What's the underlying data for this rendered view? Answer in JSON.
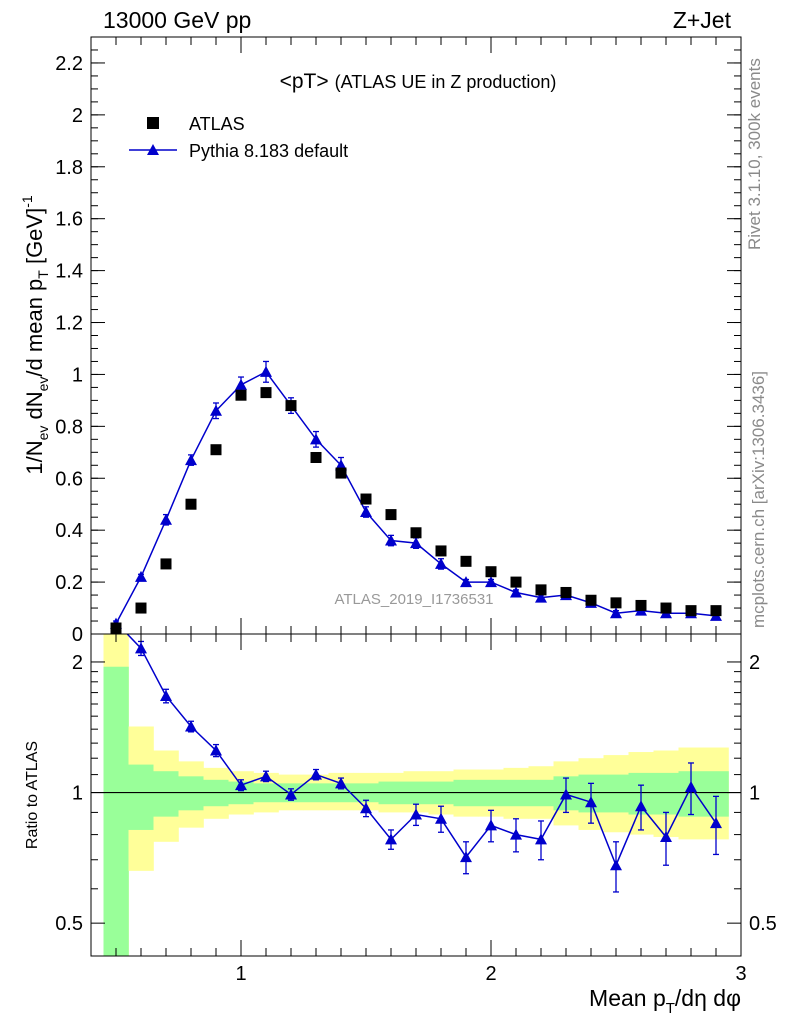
{
  "header": {
    "left": "13000 GeV pp",
    "right": "Z+Jet"
  },
  "side_text": {
    "rivet": "Rivet 3.1.10,  300k events",
    "mcplots": "mcplots.cern.ch [arXiv:1306.3436]"
  },
  "colors": {
    "data_marker": "#000000",
    "mc_line": "#0000cc",
    "band_inner": "#99ff99",
    "band_outer": "#ffff99",
    "watermark": "#999999"
  },
  "chart_data": [
    {
      "type": "scatter",
      "panel": "main",
      "title": "<pT>",
      "subtitle": "(ATLAS UE in Z production)",
      "analysis_label": "ATLAS_2019_I1736531",
      "xlabel": "Mean p_T/dη dφ",
      "ylabel": "1/N_ev dN_ev/d mean p_T [GeV]^-1",
      "xlim": [
        0.4,
        3.0
      ],
      "ylim": [
        0,
        2.3
      ],
      "yticks": [
        0,
        0.2,
        0.4,
        0.6,
        0.8,
        1,
        1.2,
        1.4,
        1.6,
        1.8,
        2,
        2.2
      ],
      "ytick_labels": [
        "0",
        "0.2",
        "0.4",
        "0.6",
        "0.8",
        "1",
        "1.2",
        "1.4",
        "1.6",
        "1.8",
        "2",
        "2.2"
      ],
      "legend": {
        "position": "top-left",
        "entries": [
          "ATLAS",
          "Pythia 8.183 default"
        ]
      },
      "series": [
        {
          "name": "ATLAS",
          "marker": "square",
          "x": [
            0.5,
            0.6,
            0.7,
            0.8,
            0.9,
            1.0,
            1.1,
            1.2,
            1.3,
            1.4,
            1.5,
            1.6,
            1.7,
            1.8,
            1.9,
            2.0,
            2.1,
            2.2,
            2.3,
            2.4,
            2.5,
            2.6,
            2.7,
            2.8,
            2.9
          ],
          "y": [
            0.02,
            0.1,
            0.27,
            0.5,
            0.71,
            0.92,
            0.93,
            0.88,
            0.68,
            0.62,
            0.52,
            0.46,
            0.39,
            0.32,
            0.28,
            0.24,
            0.2,
            0.17,
            0.16,
            0.13,
            0.12,
            0.11,
            0.1,
            0.09,
            0.09
          ]
        },
        {
          "name": "Pythia 8.183 default",
          "marker": "triangle",
          "x": [
            0.5,
            0.6,
            0.7,
            0.8,
            0.9,
            1.0,
            1.1,
            1.2,
            1.3,
            1.4,
            1.5,
            1.6,
            1.7,
            1.8,
            1.9,
            2.0,
            2.1,
            2.2,
            2.3,
            2.4,
            2.5,
            2.6,
            2.7,
            2.8,
            2.9
          ],
          "y": [
            0.04,
            0.22,
            0.44,
            0.67,
            0.86,
            0.96,
            1.01,
            0.88,
            0.75,
            0.65,
            0.47,
            0.36,
            0.35,
            0.27,
            0.2,
            0.2,
            0.16,
            0.14,
            0.15,
            0.12,
            0.08,
            0.09,
            0.08,
            0.08,
            0.07
          ],
          "yerr": [
            0.01,
            0.01,
            0.02,
            0.02,
            0.03,
            0.03,
            0.04,
            0.03,
            0.03,
            0.03,
            0.02,
            0.02,
            0.02,
            0.02,
            0.01,
            0.01,
            0.01,
            0.01,
            0.01,
            0.01,
            0.01,
            0.01,
            0.01,
            0.01,
            0.01
          ]
        }
      ]
    },
    {
      "type": "scatter",
      "panel": "ratio",
      "ylabel": "Ratio to ATLAS",
      "xlabel": "Mean p_T/dη dφ",
      "xlim": [
        0.4,
        3.0
      ],
      "ylim": [
        0.42,
        2.32
      ],
      "log_y": true,
      "xticks": [
        1,
        2,
        3
      ],
      "xtick_labels": [
        "1",
        "2",
        "3"
      ],
      "yticks": [
        0.5,
        1,
        2
      ],
      "ytick_labels": [
        "0.5",
        "1",
        "2"
      ],
      "reference_line": 1,
      "bands": {
        "x_edges": [
          0.45,
          0.55,
          0.65,
          0.75,
          0.85,
          0.95,
          1.05,
          1.15,
          1.25,
          1.35,
          1.45,
          1.55,
          1.65,
          1.75,
          1.85,
          1.95,
          2.05,
          2.15,
          2.25,
          2.35,
          2.45,
          2.55,
          2.65,
          2.75,
          2.85,
          2.95
        ],
        "inner_lo": [
          0.3,
          0.82,
          0.88,
          0.91,
          0.93,
          0.94,
          0.95,
          0.95,
          0.95,
          0.95,
          0.95,
          0.94,
          0.94,
          0.94,
          0.93,
          0.93,
          0.93,
          0.93,
          0.91,
          0.9,
          0.9,
          0.89,
          0.89,
          0.88,
          0.88
        ],
        "inner_hi": [
          1.95,
          1.16,
          1.12,
          1.09,
          1.07,
          1.06,
          1.05,
          1.05,
          1.05,
          1.05,
          1.05,
          1.06,
          1.06,
          1.06,
          1.07,
          1.07,
          1.07,
          1.07,
          1.09,
          1.1,
          1.1,
          1.11,
          1.11,
          1.12,
          1.12
        ],
        "outer_lo": [
          0.3,
          0.66,
          0.77,
          0.83,
          0.87,
          0.89,
          0.9,
          0.91,
          0.91,
          0.91,
          0.91,
          0.9,
          0.9,
          0.89,
          0.88,
          0.88,
          0.87,
          0.87,
          0.84,
          0.82,
          0.81,
          0.8,
          0.79,
          0.78,
          0.78
        ],
        "outer_hi": [
          2.6,
          1.42,
          1.25,
          1.18,
          1.14,
          1.12,
          1.11,
          1.1,
          1.1,
          1.11,
          1.11,
          1.11,
          1.12,
          1.12,
          1.13,
          1.13,
          1.14,
          1.15,
          1.18,
          1.2,
          1.22,
          1.24,
          1.25,
          1.27,
          1.27
        ]
      },
      "series": [
        {
          "name": "Pythia 8.183 default / ATLAS",
          "marker": "triangle",
          "x": [
            0.6,
            0.7,
            0.8,
            0.9,
            1.0,
            1.1,
            1.2,
            1.3,
            1.4,
            1.5,
            1.6,
            1.7,
            1.8,
            1.9,
            2.0,
            2.1,
            2.2,
            2.3,
            2.4,
            2.5,
            2.6,
            2.7,
            2.8,
            2.9
          ],
          "y": [
            2.15,
            1.67,
            1.42,
            1.25,
            1.04,
            1.09,
            0.99,
            1.1,
            1.05,
            0.92,
            0.78,
            0.89,
            0.87,
            0.71,
            0.84,
            0.8,
            0.78,
            0.99,
            0.95,
            0.68,
            0.93,
            0.79,
            1.03,
            0.85
          ],
          "yerr": [
            0.08,
            0.06,
            0.04,
            0.04,
            0.03,
            0.03,
            0.03,
            0.03,
            0.03,
            0.04,
            0.04,
            0.05,
            0.06,
            0.06,
            0.07,
            0.07,
            0.08,
            0.09,
            0.1,
            0.09,
            0.11,
            0.11,
            0.14,
            0.13
          ]
        }
      ]
    }
  ]
}
